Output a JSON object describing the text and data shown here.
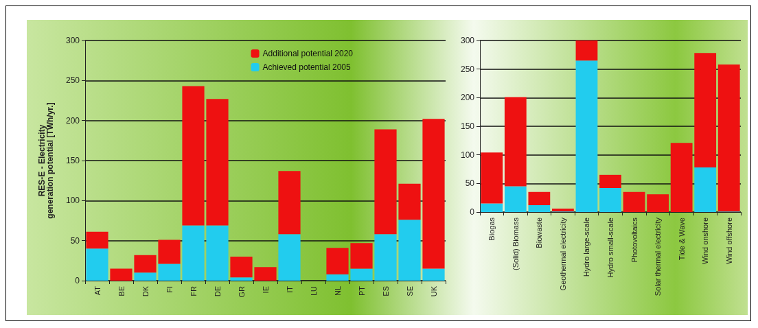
{
  "chart_data": [
    {
      "type": "bar",
      "ylabel": "RES-E - Electricity\ngeneration potential [TWh/yr.]",
      "categories": [
        "AT",
        "BE",
        "DK",
        "FI",
        "FR",
        "DE",
        "GR",
        "IE",
        "IT",
        "LU",
        "NL",
        "PT",
        "ES",
        "SE",
        "UK"
      ],
      "stacked": true,
      "ylim": [
        0,
        300
      ],
      "yticks": [
        0,
        50,
        100,
        150,
        200,
        250,
        300
      ],
      "grid": "y",
      "legend": "top right",
      "series": [
        {
          "name": "Achieved potential 2005",
          "color": "#22ccee",
          "values": [
            40,
            0,
            10,
            21,
            69,
            69,
            4,
            0,
            58,
            0,
            8,
            15,
            58,
            76,
            15
          ]
        },
        {
          "name": "Additional potential 2020",
          "color": "#ee1111",
          "values": [
            21,
            15,
            22,
            30,
            174,
            158,
            26,
            17,
            79,
            0,
            33,
            32,
            131,
            45,
            187
          ]
        }
      ]
    },
    {
      "type": "bar",
      "categories": [
        "Biogas",
        "(Solid) Biomass",
        "Biowaste",
        "Geothermal electricity",
        "Hydro large-scale",
        "Hydro small-scale",
        "Photovoltaics",
        "Solar thermal electricity",
        "Tide & Wave",
        "Wind onshore",
        "Wind offshore"
      ],
      "stacked": true,
      "ylim": [
        0,
        300
      ],
      "yticks": [
        0,
        50,
        100,
        150,
        200,
        250,
        300
      ],
      "grid": "y",
      "series": [
        {
          "color": "#22ccee",
          "values": [
            15,
            45,
            12,
            1,
            265,
            42,
            0,
            0,
            0,
            78,
            1
          ]
        },
        {
          "color": "#ee1111",
          "values": [
            89,
            156,
            23,
            5,
            35,
            23,
            35,
            31,
            121,
            200,
            257
          ]
        }
      ]
    }
  ]
}
